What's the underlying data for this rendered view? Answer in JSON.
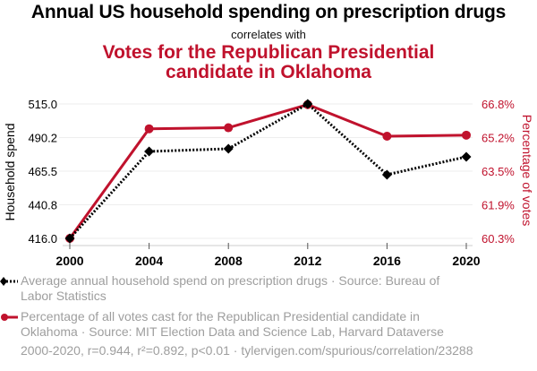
{
  "chart_data": {
    "type": "line",
    "title": "Annual US household spending on prescription drugs",
    "subtitle": "correlates with",
    "title2": "Votes for the Republican Presidential candidate in Oklahoma",
    "title2_lines": [
      "Votes for the Republican Presidential",
      "candidate in Oklahoma"
    ],
    "x": [
      2000,
      2004,
      2008,
      2012,
      2016,
      2020
    ],
    "x_tick_labels": [
      "2000",
      "2004",
      "2008",
      "2012",
      "2016",
      "2020"
    ],
    "ylabel_left": "Household spend",
    "ylabel_right": "Percentage of votes",
    "yticks_left": [
      "515.0",
      "490.2",
      "465.5",
      "440.8",
      "416.0"
    ],
    "yticks_right": [
      "66.8%",
      "65.2%",
      "63.5%",
      "61.9%",
      "60.3%"
    ],
    "ylim_left": [
      416.0,
      515.0
    ],
    "ylim_right": [
      60.3,
      66.8
    ],
    "grid": true,
    "legend_position": "bottom-left",
    "series": [
      {
        "name": "Average annual household spend on prescription drugs · Source: Bureau of Labor Statistics",
        "axis": "left",
        "color": "#000000",
        "style": "dotted",
        "marker": "diamond",
        "values": [
          416.0,
          480.0,
          482.0,
          515.0,
          462.9,
          476.1
        ]
      },
      {
        "name": "Percentage of all votes cast for the Republican Presidential candidate in Oklahoma · Source: MIT Election Data and Science Lab, Harvard Dataverse",
        "axis": "right",
        "color": "#c0122d",
        "style": "solid",
        "marker": "circle",
        "values": [
          60.3,
          65.6,
          65.65,
          66.77,
          65.24,
          65.29
        ]
      }
    ],
    "legend": [
      {
        "line1": "Average annual household spend on prescription drugs · Source: Bureau of",
        "line2": "Labor Statistics"
      },
      {
        "line1": "Percentage of all votes cast for the Republican Presidential candidate in",
        "line2": "Oklahoma · Source: MIT Election Data and Science Lab, Harvard Dataverse"
      }
    ],
    "footer": "2000-2020, r=0.944, r²=0.892, p<0.01 · tylervigen.com/spurious/correlation/23288"
  }
}
